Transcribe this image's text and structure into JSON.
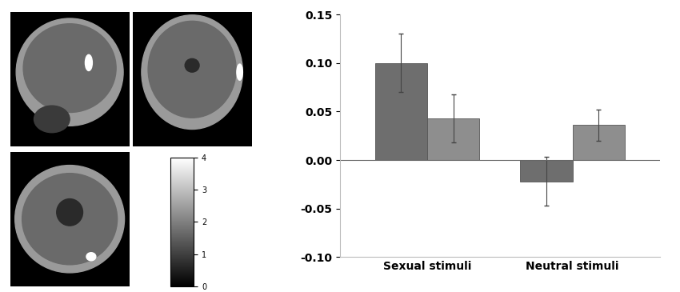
{
  "chart_data": {
    "type": "bar",
    "categories": [
      "Sexual stimuli",
      "Neutral stimuli"
    ],
    "series": [
      {
        "color": "#6e6e6e",
        "values": [
          0.1,
          -0.022
        ],
        "errors": [
          0.03,
          0.025
        ]
      },
      {
        "color": "#8e8e8e",
        "values": [
          0.043,
          0.036
        ],
        "errors": [
          0.025,
          0.016
        ]
      }
    ],
    "ylim": [
      -0.1,
      0.15
    ],
    "yticks": [
      {
        "value": -0.1,
        "label": "-0.10"
      },
      -0.05,
      {
        "value": 0,
        "label": "0.00"
      },
      0.05,
      {
        "value": 0.1,
        "label": "0.10"
      },
      0.15
    ],
    "colorbar": {
      "range": [
        0,
        4
      ],
      "ticks": [
        0,
        1,
        2,
        3,
        4
      ]
    }
  }
}
